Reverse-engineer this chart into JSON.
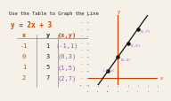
{
  "title": "Use the Table to Graph the Line",
  "equation": "y = 2x + 3",
  "table_headers": [
    "x",
    "y",
    "(x,y)"
  ],
  "table_rows": [
    [
      -1,
      1,
      "(-1,1)"
    ],
    [
      0,
      3,
      "(0,3)"
    ],
    [
      1,
      5,
      "(1,5)"
    ],
    [
      2,
      7,
      "(2,7)"
    ]
  ],
  "points": [
    [
      -1,
      1
    ],
    [
      0,
      3
    ],
    [
      1,
      5
    ],
    [
      2,
      7
    ]
  ],
  "point_labels": [
    "(-1,1)",
    "(0,3)",
    "(1,5)",
    "(2,7)"
  ],
  "bg_color": "#f5f0e8",
  "title_color": "#222222",
  "equation_color": "#cc4400",
  "header_color": "#cc4400",
  "row_x_color": "#cc4400",
  "row_y_color": "#222222",
  "row_xy_color": "#9955bb",
  "line_color": "#111111",
  "point_color": "#111111",
  "axis_color": "#cc4400",
  "point_label_color": "#9955bb",
  "table_line_color": "#888888",
  "xlim": [
    -3,
    4
  ],
  "ylim": [
    -1,
    9
  ],
  "font_family": "monospace"
}
